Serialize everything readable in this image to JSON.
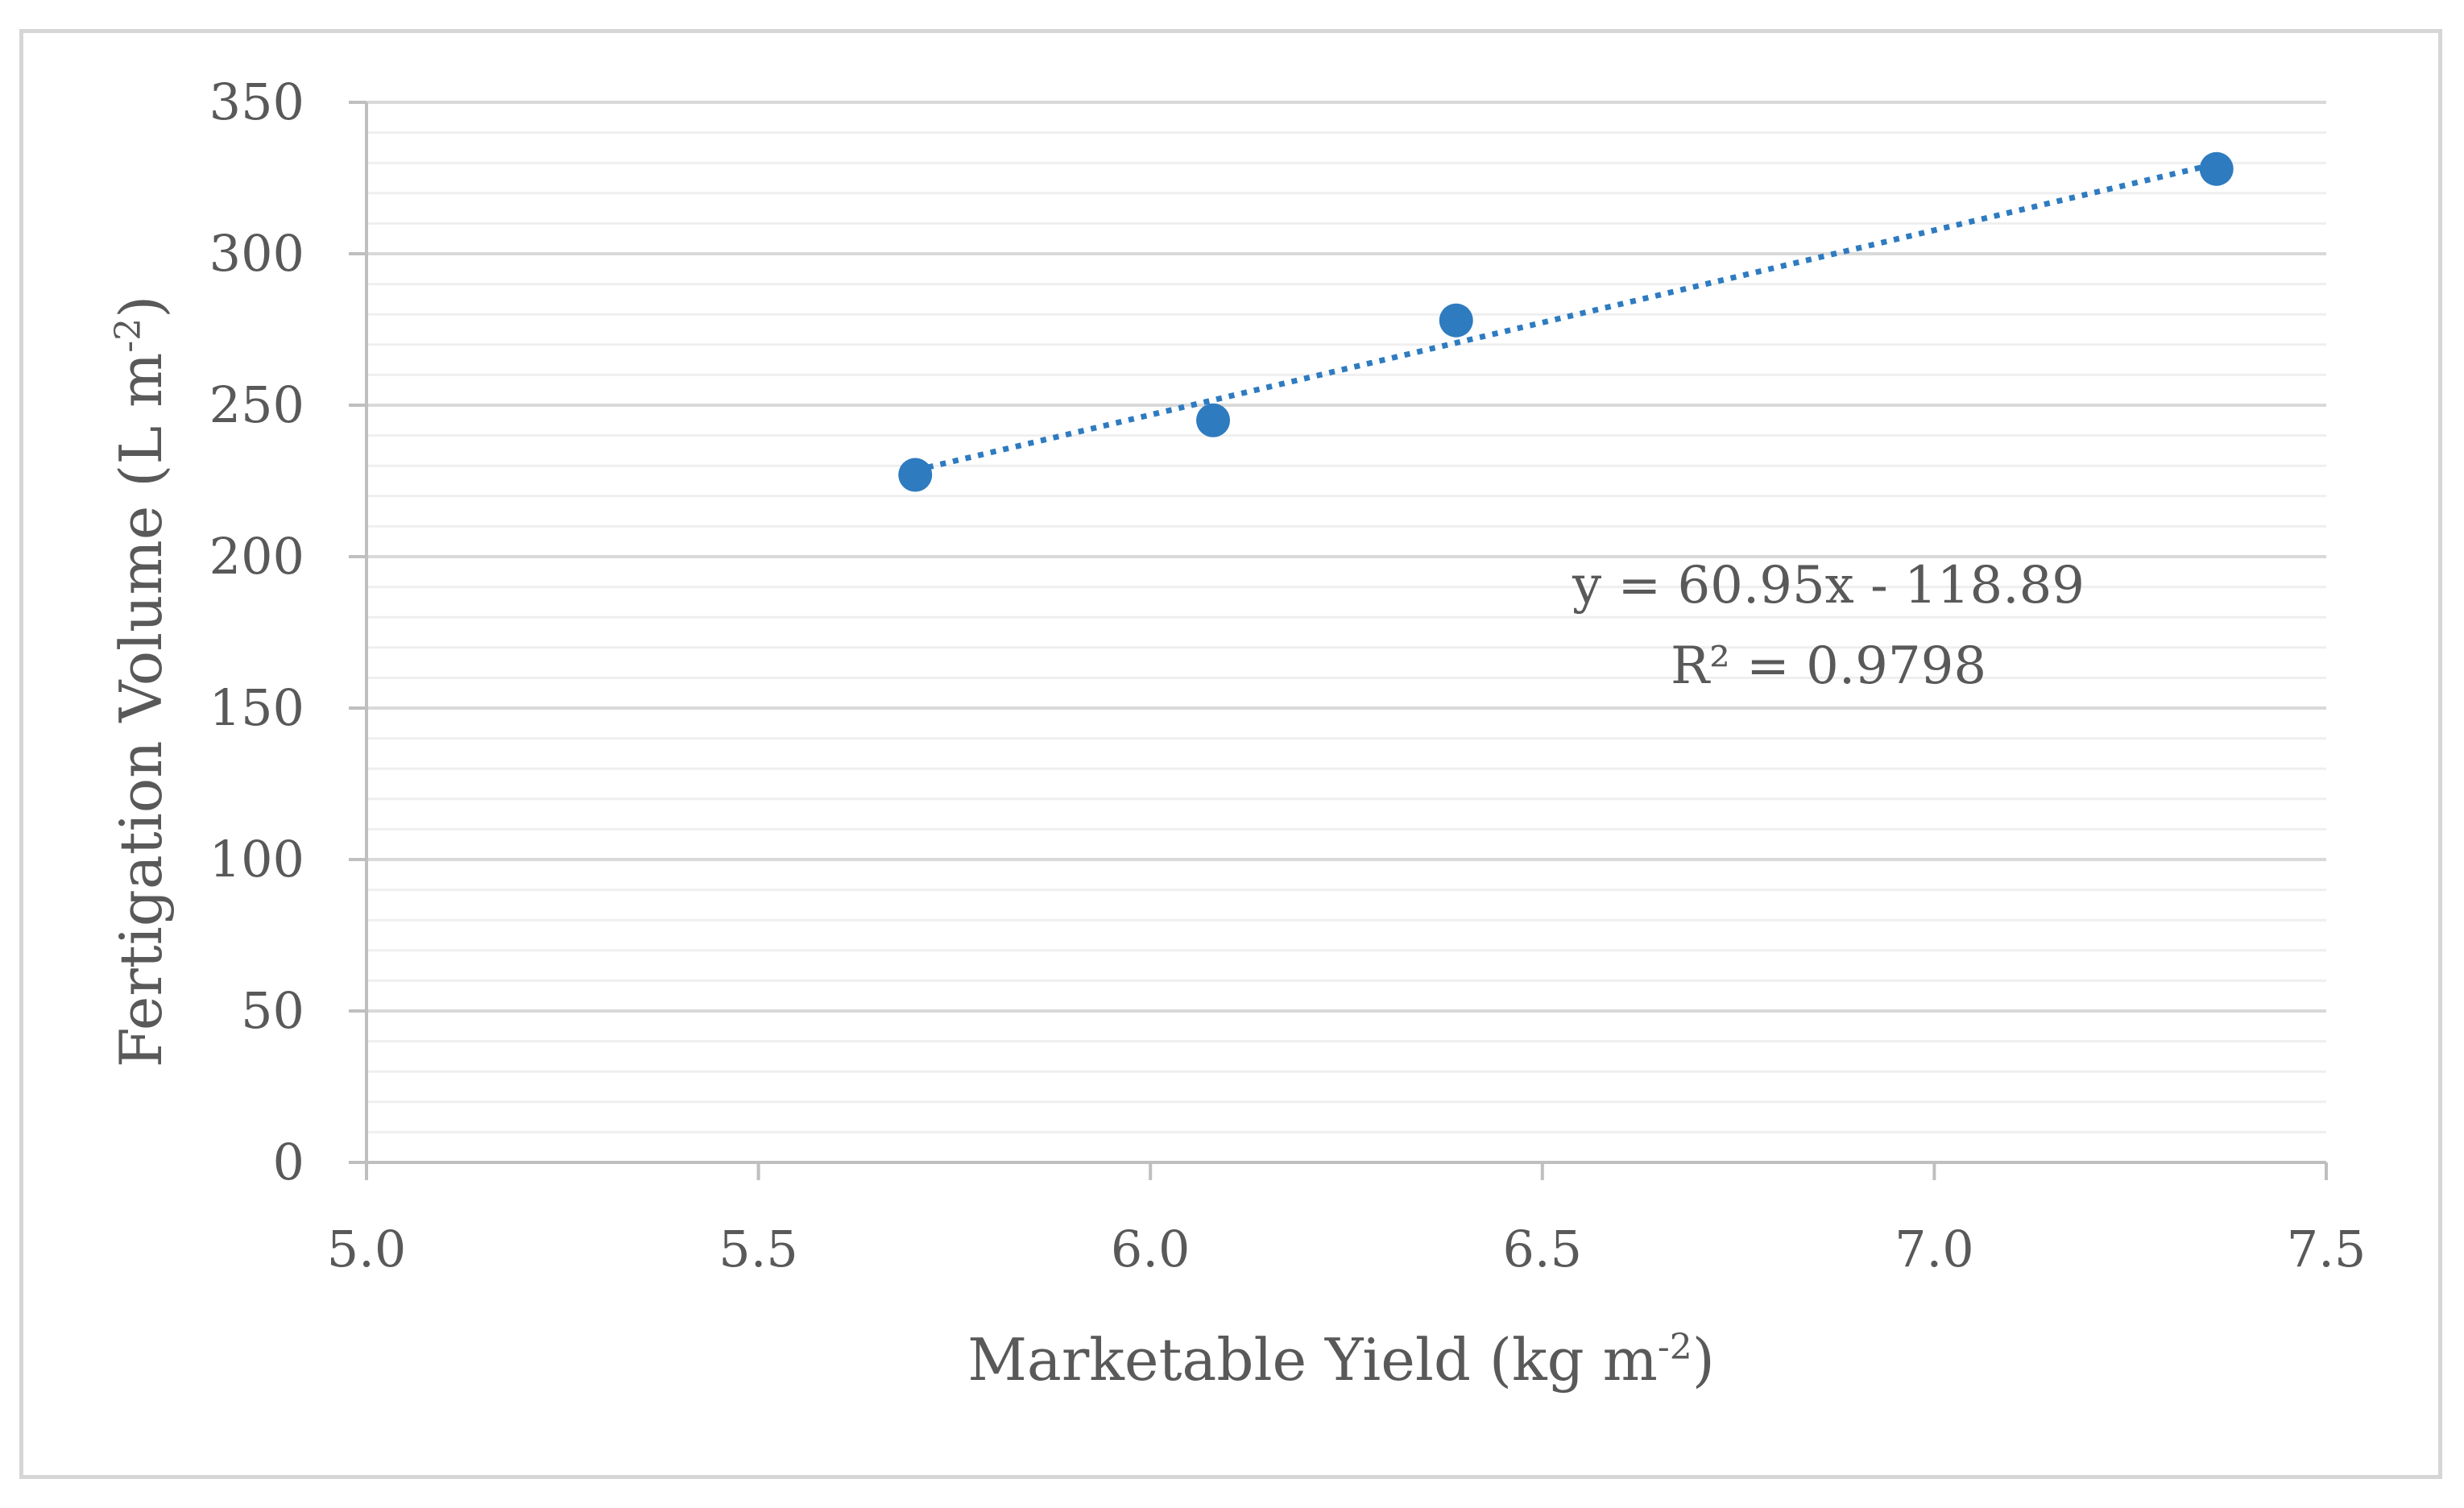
{
  "chart_data": {
    "type": "scatter",
    "xlabel": "Marketable Yield (kg m",
    "xlabel_sup": "-2",
    "xlabel_end": ")",
    "ylabel": "Fertigation Volume (L m",
    "ylabel_sup": "-2",
    "ylabel_end": ")",
    "xlim": [
      5.0,
      7.5
    ],
    "ylim": [
      0,
      350
    ],
    "x_ticks": [
      "5.0",
      "5.5",
      "6.0",
      "6.5",
      "7.0",
      "7.5"
    ],
    "y_ticks": [
      "0",
      "50",
      "100",
      "150",
      "200",
      "250",
      "300",
      "350"
    ],
    "x_tick_values": [
      5.0,
      5.5,
      6.0,
      6.5,
      7.0,
      7.5
    ],
    "y_tick_values": [
      0,
      50,
      100,
      150,
      200,
      250,
      300,
      350
    ],
    "minor_y_step": 10,
    "grid": true,
    "points": [
      {
        "x": 5.7,
        "y": 227
      },
      {
        "x": 6.08,
        "y": 245
      },
      {
        "x": 6.39,
        "y": 278
      },
      {
        "x": 7.36,
        "y": 328
      }
    ],
    "trendline": {
      "type": "linear",
      "slope": 60.95,
      "intercept": -118.89,
      "x_range": [
        5.7,
        7.36
      ],
      "style": "dotted",
      "equation_label": "y = 60.95x - 118.89",
      "r2_label": "R² = 0.9798"
    },
    "colors": {
      "points": "#2E7BC0",
      "trendline": "#2E7BC0",
      "major_grid": "#d9d9d9",
      "minor_grid": "#efefef",
      "axis": "#bfbfbf",
      "text": "#595959",
      "border": "#d6d6d6"
    }
  }
}
